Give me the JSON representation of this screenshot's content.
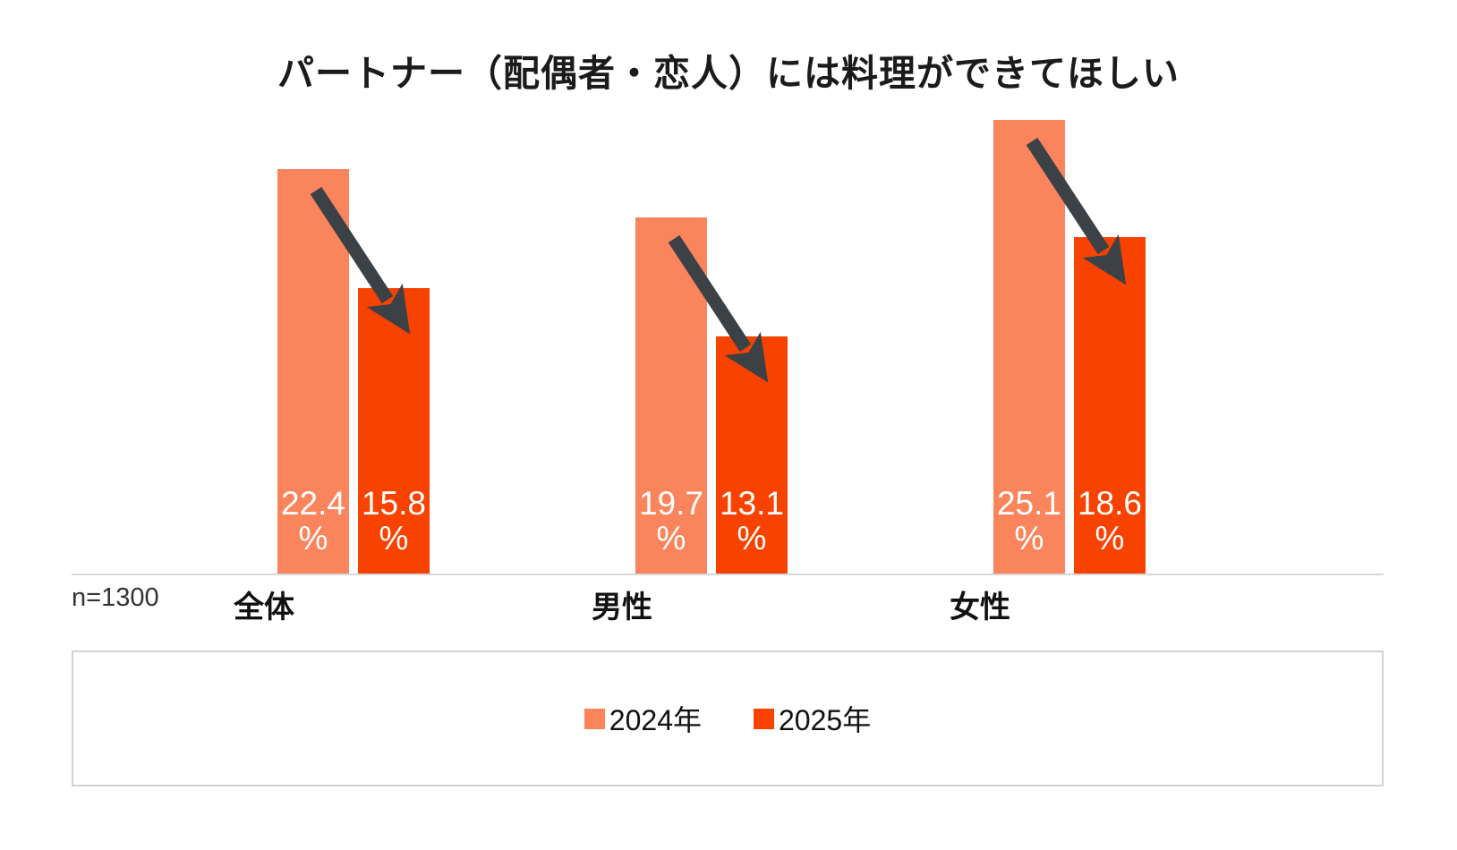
{
  "title": "パートナー（配偶者・恋人）には料理ができてほしい",
  "sample_label": "n=1300",
  "colors": {
    "series_2024": "#fa845c",
    "series_2025": "#f84300",
    "arrow": "#3c4146",
    "axis_line": "#d7d7d7",
    "legend_border": "#d2d2d2",
    "value_text": "#ffffff",
    "text": "#1b1b1b"
  },
  "chart_data": {
    "type": "bar",
    "title": "パートナー（配偶者・恋人）には料理ができてほしい",
    "categories": [
      "全体",
      "男性",
      "女性"
    ],
    "series": [
      {
        "name": "2024年",
        "color": "#fa845c",
        "values": [
          22.4,
          19.7,
          25.1
        ]
      },
      {
        "name": "2025年",
        "color": "#f84300",
        "values": [
          15.8,
          13.1,
          18.6
        ]
      }
    ],
    "value_suffix": "%",
    "xlabel": "",
    "ylabel": "",
    "ylim": [
      0,
      28
    ],
    "grid": false,
    "legend_position": "bottom",
    "annotations": "dark downward arrow from each 2024 bar to the 2025 bar indicating decrease",
    "sample_size_note": "n=1300"
  }
}
